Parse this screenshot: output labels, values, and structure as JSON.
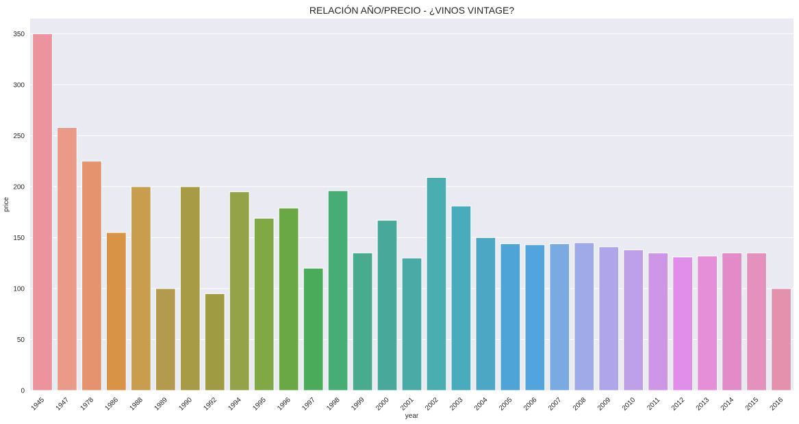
{
  "chart_data": {
    "type": "bar",
    "title": "RELACIÓN AÑO/PRECIO - ¿VINOS VINTAGE?",
    "xlabel": "year",
    "ylabel": "price",
    "ylim": [
      0,
      365
    ],
    "yticks": [
      0,
      50,
      100,
      150,
      200,
      250,
      300,
      350
    ],
    "grid": true,
    "background": "#eaeaf2",
    "categories": [
      "1945",
      "1947",
      "1978",
      "1986",
      "1988",
      "1989",
      "1990",
      "1992",
      "1994",
      "1995",
      "1996",
      "1997",
      "1998",
      "1999",
      "2000",
      "2001",
      "2002",
      "2003",
      "2004",
      "2005",
      "2006",
      "2007",
      "2008",
      "2009",
      "2010",
      "2011",
      "2012",
      "2013",
      "2014",
      "2015",
      "2016"
    ],
    "values": [
      350,
      258,
      225,
      155,
      200,
      100,
      200,
      95,
      195,
      169,
      179,
      120,
      196,
      135,
      167,
      130,
      209,
      181,
      150,
      144,
      143,
      144,
      145,
      141,
      138,
      135,
      131,
      132,
      135,
      135,
      100
    ],
    "colors": [
      "#ec939e",
      "#eb9a8a",
      "#e5936e",
      "#d99347",
      "#c89e4e",
      "#b49a4c",
      "#a79b45",
      "#9e9b42",
      "#94a348",
      "#80a844",
      "#6aa745",
      "#4aac5a",
      "#46ae75",
      "#48ab8d",
      "#48a99b",
      "#4aaba6",
      "#4aaeb0",
      "#49acbc",
      "#4ba7c4",
      "#4ea4d6",
      "#52a4de",
      "#79abe2",
      "#a0aae9",
      "#afa5ea",
      "#bea0e9",
      "#cd96e7",
      "#e08ee9",
      "#e58fd8",
      "#e38bc8",
      "#e492bd",
      "#e491ad"
    ]
  }
}
